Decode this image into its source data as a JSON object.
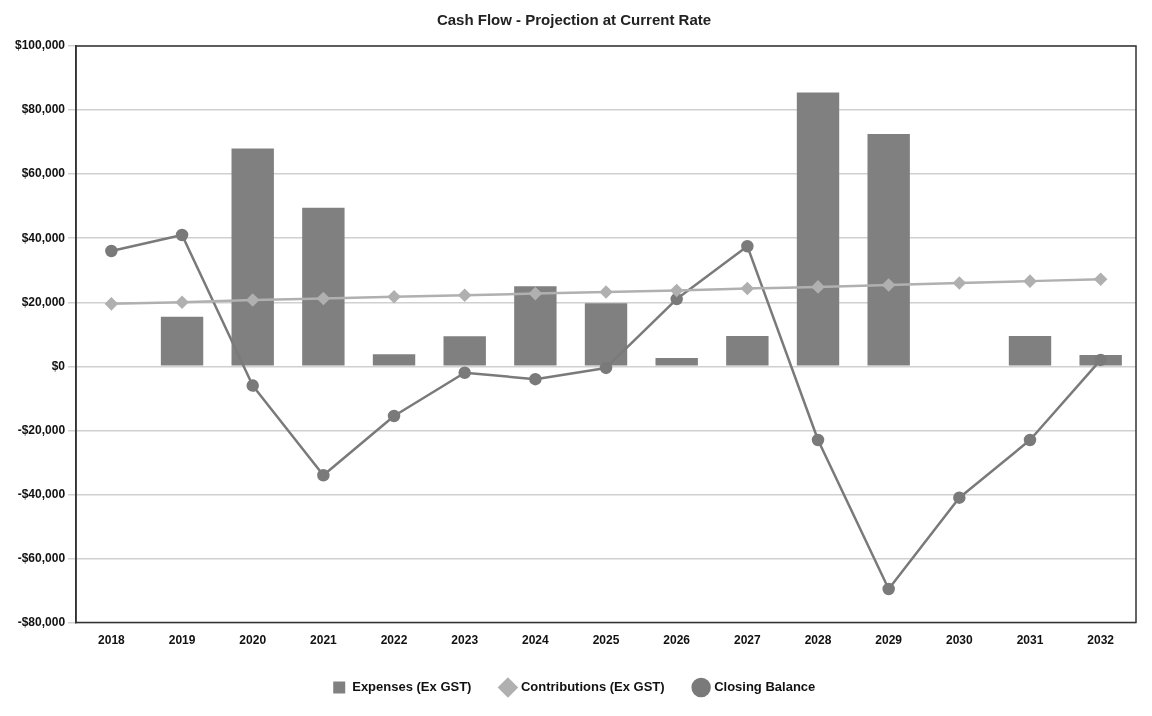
{
  "chart_data": {
    "type": "bar",
    "title": "Cash Flow - Projection at Current Rate",
    "categories": [
      "2018",
      "2019",
      "2020",
      "2021",
      "2022",
      "2023",
      "2024",
      "2025",
      "2026",
      "2027",
      "2028",
      "2029",
      "2030",
      "2031",
      "2032"
    ],
    "series": [
      {
        "name": "Expenses (Ex GST)",
        "type": "bar",
        "color": "#808080",
        "values": [
          0,
          15500,
          68000,
          49500,
          3800,
          9400,
          25000,
          19700,
          2600,
          9500,
          85500,
          72500,
          0,
          9500,
          3500
        ]
      },
      {
        "name": "Contributions (Ex GST)",
        "type": "line",
        "color": "#b0b0b0",
        "marker": "diamond",
        "values": [
          19500,
          20000,
          20700,
          21200,
          21700,
          22200,
          22700,
          23200,
          23700,
          24300,
          24800,
          25400,
          26000,
          26600,
          27200
        ]
      },
      {
        "name": "Closing Balance",
        "type": "line",
        "color": "#7a7a7a",
        "marker": "circle",
        "values": [
          36000,
          41000,
          -6000,
          -34000,
          -15500,
          -2000,
          -4000,
          -500,
          21000,
          37500,
          -23000,
          -69500,
          -41000,
          -23000,
          2000
        ]
      }
    ],
    "ylim": [
      -80000,
      100000
    ],
    "yticks": [
      {
        "value": -80000,
        "label": "-$80,000"
      },
      {
        "value": -60000,
        "label": "-$60,000"
      },
      {
        "value": -40000,
        "label": "-$40,000"
      },
      {
        "value": -20000,
        "label": "-$20,000"
      },
      {
        "value": 0,
        "label": "$0"
      },
      {
        "value": 20000,
        "label": "$20,000"
      },
      {
        "value": 40000,
        "label": "$40,000"
      },
      {
        "value": 60000,
        "label": "$60,000"
      },
      {
        "value": 80000,
        "label": "$80,000"
      },
      {
        "value": 100000,
        "label": "$100,000"
      }
    ],
    "grid": "y",
    "legend": "bottom"
  }
}
